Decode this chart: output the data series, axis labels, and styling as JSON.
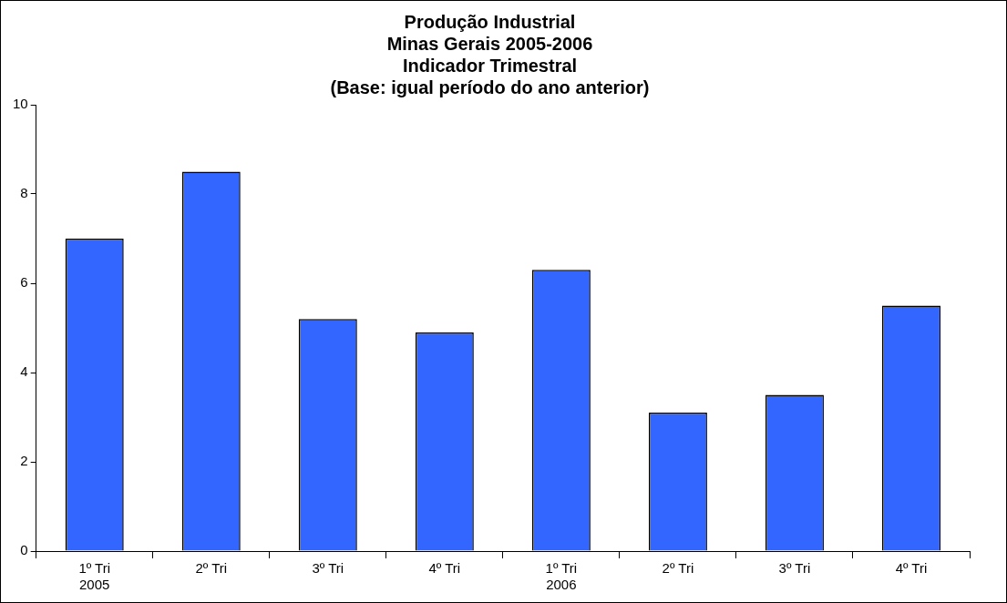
{
  "chart_data": {
    "type": "bar",
    "title": "Produção Industrial\nMinas Gerais 2005-2006\nIndicador Trimestral\n(Base: igual período do ano anterior)",
    "categories": [
      "1º Tri\n2005",
      "2º Tri",
      "3º Tri",
      "4º Tri",
      "1º Tri\n2006",
      "2º Tri",
      "3º Tri",
      "4º Tri"
    ],
    "values": [
      7.0,
      8.5,
      5.2,
      4.9,
      6.3,
      3.1,
      3.5,
      5.5
    ],
    "color": "#3366ff",
    "ylim": [
      0,
      10
    ],
    "yticks": [
      0,
      2,
      4,
      6,
      8,
      10
    ],
    "grid": false,
    "legend": false
  }
}
